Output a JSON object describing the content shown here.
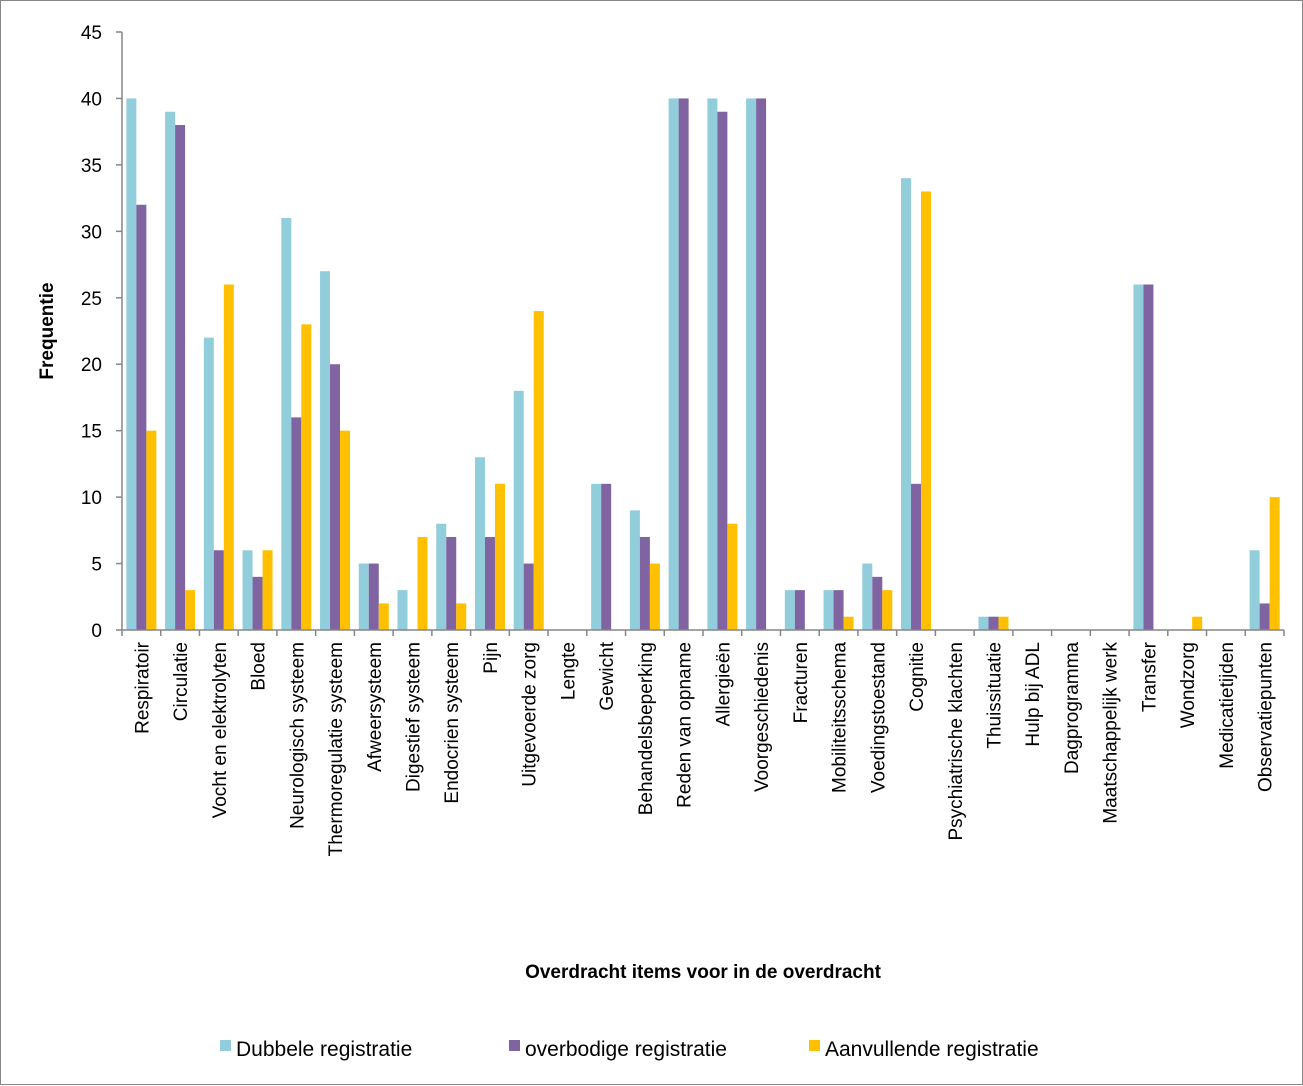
{
  "chart_data": {
    "type": "bar",
    "title": "",
    "xlabel": "Overdracht items voor in de overdracht",
    "ylabel": "Frequentie",
    "ylim": [
      0,
      45
    ],
    "yticks": [
      0,
      5,
      10,
      15,
      20,
      25,
      30,
      35,
      40,
      45
    ],
    "grid": false,
    "legend_position": "bottom",
    "categories": [
      "Respiratoir",
      "Circulatie",
      "Vocht en elektrolyten",
      "Bloed",
      "Neurologisch systeem",
      "Thermoregulatie systeem",
      "Afweersysteem",
      "Digestief systeem",
      "Endocrien systeem",
      "Pijn",
      "Uitgevoerde zorg",
      "Lengte",
      "Gewicht",
      "Behandelsbeperking",
      "Reden van opname",
      "Allergieën",
      "Voorgeschiedenis",
      "Fracturen",
      "Mobiliteitsschema",
      "Voedingstoestand",
      "Cognitie",
      "Psychiatrische klachten",
      "Thuissituatie",
      "Hulp bij ADL",
      "Dagprogramma",
      "Maatschappelijk werk",
      "Transfer",
      "Wondzorg",
      "Medicatietijden",
      "Observatiepunten"
    ],
    "series": [
      {
        "name": "Dubbele registratie",
        "color": "#92CDDC",
        "values": [
          40,
          39,
          22,
          6,
          31,
          27,
          5,
          3,
          8,
          13,
          18,
          0,
          11,
          9,
          40,
          40,
          40,
          3,
          3,
          5,
          34,
          0,
          1,
          0,
          0,
          0,
          26,
          0,
          0,
          6
        ]
      },
      {
        "name": "overbodige registratie",
        "color": "#8064A2",
        "values": [
          32,
          38,
          6,
          4,
          16,
          20,
          5,
          0,
          7,
          7,
          5,
          0,
          11,
          7,
          40,
          39,
          40,
          3,
          3,
          4,
          11,
          0,
          1,
          0,
          0,
          0,
          26,
          0,
          0,
          2
        ]
      },
      {
        "name": "Aanvullende registratie",
        "color": "#FFC000",
        "values": [
          15,
          3,
          26,
          6,
          23,
          15,
          2,
          7,
          2,
          11,
          24,
          0,
          0,
          5,
          0,
          8,
          0,
          0,
          1,
          3,
          33,
          0,
          1,
          0,
          0,
          0,
          0,
          1,
          0,
          10
        ]
      }
    ]
  }
}
